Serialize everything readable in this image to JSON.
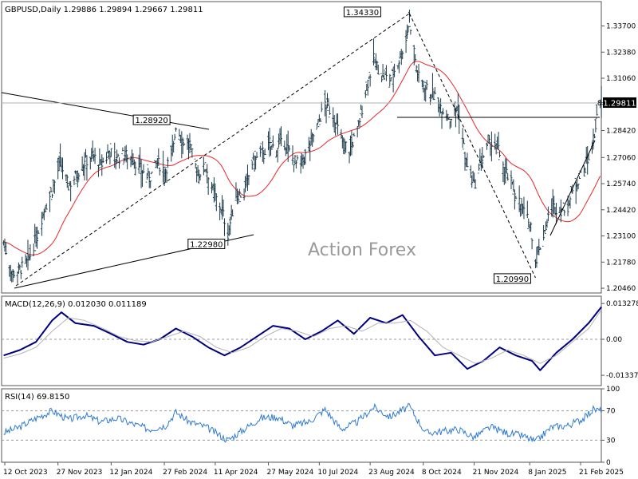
{
  "chart_data": [
    {
      "type": "candlestick",
      "panel": "price",
      "header": "GBPUSD,Daily  1.29886 1.29894 1.29667 1.29811",
      "watermark": "Action Forex",
      "y_ticks": [
        "1.33700",
        "1.32380",
        "1.31060",
        "1.29740",
        "1.28420",
        "1.27060",
        "1.25740",
        "1.24420",
        "1.23100",
        "1.21780",
        "1.20460"
      ],
      "ylim": [
        1.2022,
        1.3493
      ],
      "current_price": "1.29811",
      "current_price_suffix": ".8",
      "price_labels": [
        {
          "text": "1.34330",
          "date": "2024-09-26",
          "value": 1.3433
        },
        {
          "text": "1.28920",
          "date": "2024-03-07",
          "value": 1.2892
        },
        {
          "text": "1.22980",
          "date": "2024-04-22",
          "value": 1.2298
        },
        {
          "text": "1.20990",
          "date": "2025-01-13",
          "value": 1.2099
        }
      ],
      "ohlc_ref": {
        "start": "2023-10-11",
        "end": "2025-03-11",
        "points": [
          [
            "2023-10-11",
            1.228
          ],
          [
            "2023-10-18",
            1.212
          ],
          [
            "2023-10-25",
            1.214
          ],
          [
            "2023-11-01",
            1.218
          ],
          [
            "2023-11-08",
            1.23
          ],
          [
            "2023-11-15",
            1.244
          ],
          [
            "2023-11-22",
            1.254
          ],
          [
            "2023-11-29",
            1.268
          ],
          [
            "2023-12-06",
            1.256
          ],
          [
            "2023-12-13",
            1.262
          ],
          [
            "2023-12-20",
            1.268
          ],
          [
            "2023-12-27",
            1.272
          ],
          [
            "2024-01-03",
            1.266
          ],
          [
            "2024-01-10",
            1.274
          ],
          [
            "2024-01-17",
            1.27
          ],
          [
            "2024-01-24",
            1.272
          ],
          [
            "2024-01-31",
            1.27
          ],
          [
            "2024-02-07",
            1.264
          ],
          [
            "2024-02-14",
            1.26
          ],
          [
            "2024-02-21",
            1.268
          ],
          [
            "2024-02-28",
            1.264
          ],
          [
            "2024-03-06",
            1.276
          ],
          [
            "2024-03-08",
            1.287
          ],
          [
            "2024-03-13",
            1.28
          ],
          [
            "2024-03-20",
            1.276
          ],
          [
            "2024-03-27",
            1.262
          ],
          [
            "2024-04-03",
            1.266
          ],
          [
            "2024-04-10",
            1.252
          ],
          [
            "2024-04-17",
            1.244
          ],
          [
            "2024-04-22",
            1.232
          ],
          [
            "2024-04-29",
            1.252
          ],
          [
            "2024-05-06",
            1.252
          ],
          [
            "2024-05-13",
            1.268
          ],
          [
            "2024-05-20",
            1.272
          ],
          [
            "2024-05-27",
            1.276
          ],
          [
            "2024-06-03",
            1.276
          ],
          [
            "2024-06-10",
            1.278
          ],
          [
            "2024-06-17",
            1.27
          ],
          [
            "2024-06-24",
            1.266
          ],
          [
            "2024-07-01",
            1.276
          ],
          [
            "2024-07-08",
            1.286
          ],
          [
            "2024-07-15",
            1.298
          ],
          [
            "2024-07-22",
            1.292
          ],
          [
            "2024-07-29",
            1.28
          ],
          [
            "2024-08-05",
            1.274
          ],
          [
            "2024-08-12",
            1.284
          ],
          [
            "2024-08-19",
            1.304
          ],
          [
            "2024-08-26",
            1.32
          ],
          [
            "2024-09-02",
            1.312
          ],
          [
            "2024-09-09",
            1.31
          ],
          [
            "2024-09-16",
            1.318
          ],
          [
            "2024-09-23",
            1.33
          ],
          [
            "2024-09-26",
            1.341
          ],
          [
            "2024-10-03",
            1.312
          ],
          [
            "2024-10-10",
            1.306
          ],
          [
            "2024-10-17",
            1.302
          ],
          [
            "2024-10-24",
            1.296
          ],
          [
            "2024-10-31",
            1.29
          ],
          [
            "2024-11-07",
            1.296
          ],
          [
            "2024-11-14",
            1.268
          ],
          [
            "2024-11-21",
            1.256
          ],
          [
            "2024-11-28",
            1.27
          ],
          [
            "2024-12-05",
            1.278
          ],
          [
            "2024-12-12",
            1.274
          ],
          [
            "2024-12-19",
            1.262
          ],
          [
            "2024-12-26",
            1.254
          ],
          [
            "2025-01-02",
            1.244
          ],
          [
            "2025-01-09",
            1.236
          ],
          [
            "2025-01-13",
            1.218
          ],
          [
            "2025-01-20",
            1.232
          ],
          [
            "2025-01-27",
            1.246
          ],
          [
            "2025-02-03",
            1.244
          ],
          [
            "2025-02-10",
            1.246
          ],
          [
            "2025-02-17",
            1.258
          ],
          [
            "2025-02-24",
            1.264
          ],
          [
            "2025-03-03",
            1.276
          ],
          [
            "2025-03-07",
            1.29
          ],
          [
            "2025-03-11",
            1.298
          ]
        ]
      }
    },
    {
      "type": "line",
      "panel": "macd",
      "header": "MACD(12,26,9) 0.012030 0.011189",
      "y_ticks": [
        "0.013278",
        "0.00",
        "-0.013373"
      ],
      "ylim": [
        -0.0172,
        0.016
      ],
      "series": [
        {
          "name": "MACD",
          "points": [
            [
              "2023-10-11",
              -0.006
            ],
            [
              "2023-10-25",
              -0.004
            ],
            [
              "2023-11-08",
              -0.001
            ],
            [
              "2023-11-22",
              0.007
            ],
            [
              "2023-11-30",
              0.01
            ],
            [
              "2023-12-12",
              0.006
            ],
            [
              "2023-12-28",
              0.005
            ],
            [
              "2024-01-12",
              0.002
            ],
            [
              "2024-01-26",
              -0.001
            ],
            [
              "2024-02-09",
              -0.002
            ],
            [
              "2024-02-23",
              0.0
            ],
            [
              "2024-03-08",
              0.004
            ],
            [
              "2024-03-22",
              0.001
            ],
            [
              "2024-04-05",
              -0.003
            ],
            [
              "2024-04-19",
              -0.006
            ],
            [
              "2024-05-03",
              -0.003
            ],
            [
              "2024-05-17",
              0.001
            ],
            [
              "2024-05-31",
              0.005
            ],
            [
              "2024-06-14",
              0.004
            ],
            [
              "2024-06-28",
              0.0
            ],
            [
              "2024-07-12",
              0.003
            ],
            [
              "2024-07-26",
              0.007
            ],
            [
              "2024-08-09",
              0.002
            ],
            [
              "2024-08-23",
              0.008
            ],
            [
              "2024-09-06",
              0.006
            ],
            [
              "2024-09-20",
              0.009
            ],
            [
              "2024-10-04",
              0.001
            ],
            [
              "2024-10-18",
              -0.006
            ],
            [
              "2024-11-01",
              -0.005
            ],
            [
              "2024-11-15",
              -0.011
            ],
            [
              "2024-11-29",
              -0.008
            ],
            [
              "2024-12-13",
              -0.003
            ],
            [
              "2024-12-27",
              -0.006
            ],
            [
              "2025-01-10",
              -0.008
            ],
            [
              "2025-01-17",
              -0.0115
            ],
            [
              "2025-01-31",
              -0.005
            ],
            [
              "2025-02-14",
              0.0
            ],
            [
              "2025-02-28",
              0.006
            ],
            [
              "2025-03-11",
              0.012
            ]
          ]
        },
        {
          "name": "Signal",
          "points": [
            [
              "2023-10-11",
              -0.007
            ],
            [
              "2023-10-25",
              -0.0055
            ],
            [
              "2023-11-08",
              -0.003
            ],
            [
              "2023-11-22",
              0.003
            ],
            [
              "2023-12-06",
              0.008
            ],
            [
              "2023-12-20",
              0.007
            ],
            [
              "2024-01-05",
              0.004
            ],
            [
              "2024-01-19",
              0.001
            ],
            [
              "2024-02-02",
              -0.0005
            ],
            [
              "2024-02-16",
              -0.001
            ],
            [
              "2024-03-01",
              0.001
            ],
            [
              "2024-03-15",
              0.003
            ],
            [
              "2024-03-29",
              0.001
            ],
            [
              "2024-04-12",
              -0.003
            ],
            [
              "2024-04-26",
              -0.005
            ],
            [
              "2024-05-10",
              -0.003
            ],
            [
              "2024-05-24",
              0.001
            ],
            [
              "2024-06-07",
              0.004
            ],
            [
              "2024-06-21",
              0.003
            ],
            [
              "2024-07-05",
              0.001
            ],
            [
              "2024-07-19",
              0.004
            ],
            [
              "2024-08-02",
              0.005
            ],
            [
              "2024-08-16",
              0.003
            ],
            [
              "2024-08-30",
              0.006
            ],
            [
              "2024-09-13",
              0.006
            ],
            [
              "2024-09-27",
              0.007
            ],
            [
              "2024-10-11",
              0.003
            ],
            [
              "2024-10-25",
              -0.003
            ],
            [
              "2024-11-08",
              -0.006
            ],
            [
              "2024-11-22",
              -0.009
            ],
            [
              "2024-12-06",
              -0.007
            ],
            [
              "2024-12-20",
              -0.004
            ],
            [
              "2025-01-03",
              -0.006
            ],
            [
              "2025-01-17",
              -0.009
            ],
            [
              "2025-01-31",
              -0.006
            ],
            [
              "2025-02-14",
              -0.001
            ],
            [
              "2025-02-28",
              0.004
            ],
            [
              "2025-03-11",
              0.011
            ]
          ]
        }
      ]
    },
    {
      "type": "line",
      "panel": "rsi",
      "header": "RSI(14) 69.8150",
      "y_ticks": [
        "100",
        "70",
        "30",
        "0"
      ],
      "ylim": [
        0,
        100
      ],
      "levels": [
        70,
        30
      ],
      "series": [
        {
          "name": "RSI(14)",
          "points": [
            [
              "2023-10-11",
              40
            ],
            [
              "2023-10-25",
              48
            ],
            [
              "2023-11-08",
              60
            ],
            [
              "2023-11-22",
              70
            ],
            [
              "2023-12-06",
              58
            ],
            [
              "2023-12-20",
              64
            ],
            [
              "2024-01-03",
              55
            ],
            [
              "2024-01-17",
              60
            ],
            [
              "2024-01-31",
              52
            ],
            [
              "2024-02-14",
              45
            ],
            [
              "2024-02-28",
              50
            ],
            [
              "2024-03-08",
              68
            ],
            [
              "2024-03-20",
              55
            ],
            [
              "2024-04-03",
              48
            ],
            [
              "2024-04-22",
              30
            ],
            [
              "2024-05-06",
              45
            ],
            [
              "2024-05-20",
              60
            ],
            [
              "2024-06-03",
              62
            ],
            [
              "2024-06-17",
              50
            ],
            [
              "2024-07-01",
              55
            ],
            [
              "2024-07-15",
              72
            ],
            [
              "2024-07-29",
              45
            ],
            [
              "2024-08-12",
              55
            ],
            [
              "2024-08-26",
              75
            ],
            [
              "2024-09-09",
              62
            ],
            [
              "2024-09-26",
              76
            ],
            [
              "2024-10-10",
              40
            ],
            [
              "2024-10-24",
              42
            ],
            [
              "2024-11-07",
              45
            ],
            [
              "2024-11-21",
              34
            ],
            [
              "2024-12-05",
              48
            ],
            [
              "2024-12-19",
              40
            ],
            [
              "2025-01-02",
              36
            ],
            [
              "2025-01-13",
              28
            ],
            [
              "2025-01-27",
              48
            ],
            [
              "2025-02-10",
              50
            ],
            [
              "2025-02-24",
              60
            ],
            [
              "2025-03-04",
              72
            ],
            [
              "2025-03-11",
              70
            ]
          ]
        }
      ]
    },
    {
      "type": "axis",
      "panel": "time",
      "x_labels": [
        {
          "text": "12 Oct 2023",
          "date": "2023-10-12"
        },
        {
          "text": "27 Nov 2023",
          "date": "2023-11-27"
        },
        {
          "text": "12 Jan 2024",
          "date": "2024-01-12"
        },
        {
          "text": "27 Feb 2024",
          "date": "2024-02-27"
        },
        {
          "text": "11 Apr 2024",
          "date": "2024-04-11"
        },
        {
          "text": "27 May 2024",
          "date": "2024-05-27"
        },
        {
          "text": "10 Jul 2024",
          "date": "2024-07-10"
        },
        {
          "text": "23 Aug 2024",
          "date": "2024-08-23"
        },
        {
          "text": "8 Oct 2024",
          "date": "2024-10-08"
        },
        {
          "text": "21 Nov 2024",
          "date": "2024-11-21"
        },
        {
          "text": "8 Jan 2025",
          "date": "2025-01-08"
        },
        {
          "text": "21 Feb 2025",
          "date": "2025-02-21"
        }
      ]
    }
  ],
  "colors": {
    "background": "#ffffff",
    "candle": "#1b3a4b",
    "ma": "#e8262a",
    "trendline": "#000000",
    "macd": "#000080",
    "signal": "#b4b4b4",
    "rsi": "#2f7bd1",
    "level_line": "#9a9a9a",
    "watermark": "#9a9a9a"
  }
}
